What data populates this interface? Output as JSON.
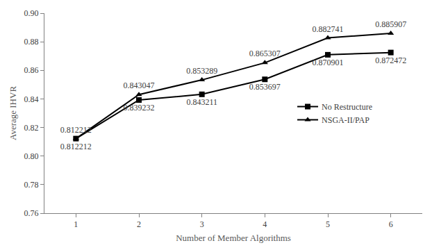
{
  "chart_data": {
    "type": "line",
    "x_label": "Number of Member Algorithms",
    "y_label": "Average IHVR",
    "categories": [
      "1",
      "2",
      "3",
      "4",
      "5",
      "6"
    ],
    "series": [
      {
        "name": "No Restructure",
        "color": "#000000",
        "marker": "square",
        "values": [
          0.812212,
          0.839232,
          0.843211,
          0.853697,
          0.870901,
          0.872472
        ]
      },
      {
        "name": "NSGA-II/PAP",
        "color": "#000000",
        "marker": "triangle-up",
        "values": [
          0.812212,
          0.843047,
          0.853289,
          0.865307,
          0.882741,
          0.885907
        ]
      }
    ],
    "ylim": [
      0.76,
      0.9
    ],
    "yticks": [
      0.76,
      0.78,
      {
        "value": 0.8,
        "label": "0.80"
      },
      0.82,
      0.84,
      0.86,
      0.88,
      {
        "value": 0.9,
        "label": "0.90"
      }
    ],
    "grid": false,
    "legend": "right",
    "data_labels": true
  }
}
